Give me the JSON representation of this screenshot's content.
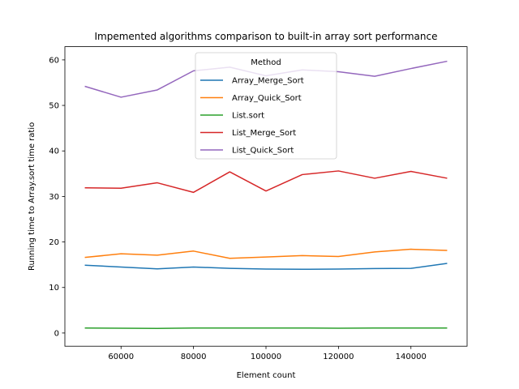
{
  "chart_data": {
    "type": "line",
    "title": "Impemented algorithms comparison to built-in array sort performance",
    "xlabel": "Element count",
    "ylabel": "Running time to Array.sort time ratio",
    "x": [
      50000,
      60000,
      70000,
      80000,
      90000,
      100000,
      110000,
      120000,
      130000,
      140000,
      150000
    ],
    "xlim": [
      44500,
      155500
    ],
    "ylim": [
      -2.9,
      62.9
    ],
    "xticks": [
      60000,
      80000,
      100000,
      120000,
      140000
    ],
    "yticks": [
      0,
      10,
      20,
      30,
      40,
      50,
      60
    ],
    "grid": false,
    "legend": {
      "title": "Method",
      "placement": "top-center"
    },
    "series": [
      {
        "name": "Array_Merge_Sort",
        "color": "#1f77b4",
        "values": [
          14.9,
          14.5,
          14.1,
          14.5,
          14.2,
          14.05,
          14.0,
          14.05,
          14.15,
          14.2,
          15.3
        ]
      },
      {
        "name": "Array_Quick_Sort",
        "color": "#ff7f0e",
        "values": [
          16.6,
          17.4,
          17.1,
          18.0,
          16.4,
          16.7,
          17.0,
          16.8,
          17.8,
          18.4,
          18.15
        ]
      },
      {
        "name": "List.sort",
        "color": "#2ca02c",
        "values": [
          1.1,
          1.05,
          1.0,
          1.1,
          1.1,
          1.1,
          1.1,
          1.05,
          1.1,
          1.1,
          1.1
        ]
      },
      {
        "name": "List_Merge_Sort",
        "color": "#d62728",
        "values": [
          31.9,
          31.8,
          33.0,
          30.9,
          35.4,
          31.2,
          34.8,
          35.6,
          34.0,
          35.5,
          34.0
        ]
      },
      {
        "name": "List_Quick_Sort",
        "color": "#9467bd",
        "values": [
          54.2,
          51.8,
          53.4,
          57.6,
          58.4,
          56.5,
          57.8,
          57.4,
          56.4,
          58.1,
          59.7
        ]
      }
    ]
  }
}
